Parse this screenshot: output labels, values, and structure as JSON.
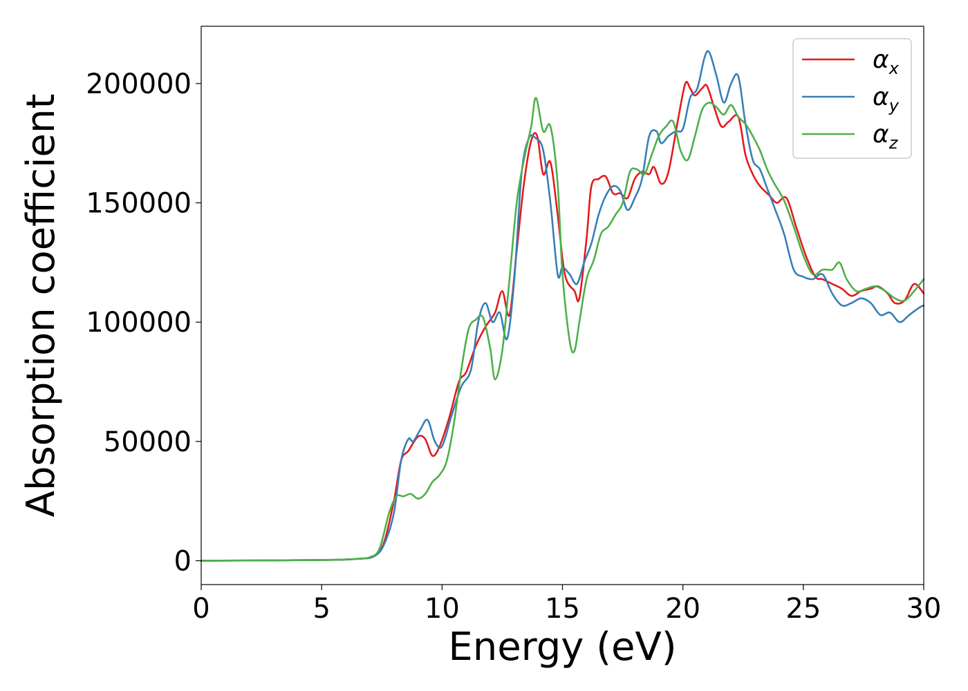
{
  "chart_data": {
    "type": "line",
    "xlabel": "Energy (eV)",
    "ylabel": "Absorption coefficient",
    "xlim": [
      0,
      30
    ],
    "ylim": [
      -10000,
      224000
    ],
    "xticks": [
      0,
      5,
      10,
      15,
      20,
      25,
      30
    ],
    "yticks": [
      0,
      50000,
      100000,
      150000,
      200000
    ],
    "grid": false,
    "legend_position": "top-right",
    "series": [
      {
        "name": "α",
        "subscript": "x",
        "color": "#e41a1c",
        "x": [
          0,
          5,
          6.5,
          7.2,
          7.6,
          8.0,
          8.3,
          8.6,
          9.0,
          9.3,
          9.6,
          9.9,
          10.3,
          10.7,
          11.0,
          11.4,
          11.8,
          12.2,
          12.5,
          12.8,
          13.1,
          13.4,
          13.7,
          13.95,
          14.2,
          14.5,
          14.8,
          15.1,
          15.5,
          15.7,
          16.0,
          16.2,
          16.5,
          16.8,
          17.1,
          17.4,
          17.7,
          18.0,
          18.3,
          18.6,
          18.8,
          19.1,
          19.4,
          19.8,
          20.1,
          20.3,
          20.5,
          20.8,
          21.0,
          21.3,
          21.6,
          21.9,
          22.3,
          22.6,
          22.9,
          23.2,
          23.6,
          23.9,
          24.3,
          24.7,
          25.1,
          25.5,
          25.8,
          26.2,
          26.6,
          27.0,
          27.4,
          27.8,
          28.1,
          28.5,
          28.8,
          29.2,
          29.6,
          30.0
        ],
        "y": [
          0,
          300,
          800,
          2000,
          8000,
          25000,
          42000,
          46000,
          52000,
          51000,
          44000,
          48000,
          60000,
          75000,
          79000,
          90000,
          98000,
          104000,
          113000,
          103000,
          130000,
          158000,
          176000,
          178000,
          162000,
          167000,
          145000,
          120000,
          113000,
          110000,
          135000,
          157000,
          160000,
          161000,
          154000,
          154000,
          152000,
          160000,
          163000,
          162000,
          165000,
          158000,
          163000,
          185000,
          200000,
          198000,
          195000,
          198000,
          199000,
          190000,
          182000,
          184000,
          186000,
          170000,
          162000,
          157000,
          153000,
          150000,
          152000,
          140000,
          128000,
          119000,
          118000,
          116000,
          114000,
          111000,
          113000,
          114000,
          115000,
          112000,
          108000,
          109000,
          116000,
          112000
        ]
      },
      {
        "name": "α",
        "subscript": "y",
        "color": "#377eb8",
        "x": [
          0,
          5,
          6.5,
          7.2,
          7.6,
          8.0,
          8.3,
          8.6,
          8.8,
          9.1,
          9.4,
          9.7,
          10.0,
          10.4,
          10.8,
          11.2,
          11.5,
          11.8,
          12.1,
          12.4,
          12.7,
          13.0,
          13.3,
          13.6,
          13.9,
          14.2,
          14.5,
          14.8,
          15.0,
          15.3,
          15.6,
          15.9,
          16.2,
          16.5,
          16.8,
          17.1,
          17.4,
          17.7,
          18.0,
          18.3,
          18.6,
          18.9,
          19.1,
          19.4,
          19.7,
          20.0,
          20.3,
          20.6,
          20.9,
          21.1,
          21.4,
          21.7,
          22.0,
          22.3,
          22.6,
          22.9,
          23.2,
          23.5,
          23.8,
          24.2,
          24.6,
          25.0,
          25.4,
          25.8,
          26.2,
          26.6,
          27.0,
          27.4,
          27.8,
          28.2,
          28.6,
          29.0,
          29.4,
          29.8,
          30.0
        ],
        "y": [
          0,
          300,
          800,
          2000,
          7000,
          20000,
          42000,
          51000,
          50000,
          55000,
          59000,
          50000,
          48000,
          61000,
          73000,
          80000,
          100000,
          108000,
          100000,
          104000,
          93000,
          118000,
          162000,
          177000,
          177000,
          172000,
          150000,
          120000,
          123000,
          120000,
          116000,
          125000,
          133000,
          145000,
          153000,
          157000,
          155000,
          147000,
          152000,
          160000,
          178000,
          180000,
          175000,
          178000,
          180000,
          181000,
          194000,
          198000,
          211000,
          213000,
          203000,
          192000,
          200000,
          203000,
          183000,
          168000,
          164000,
          156000,
          148000,
          137000,
          122000,
          119000,
          118000,
          120000,
          112000,
          107000,
          108000,
          110000,
          108000,
          103000,
          104000,
          100000,
          103000,
          106000,
          107000
        ]
      },
      {
        "name": "α",
        "subscript": "z",
        "color": "#4daf4a",
        "x": [
          0,
          5,
          6.5,
          7.0,
          7.4,
          7.8,
          8.1,
          8.4,
          8.7,
          9.0,
          9.3,
          9.6,
          9.9,
          10.2,
          10.5,
          10.8,
          11.1,
          11.4,
          11.7,
          12.0,
          12.2,
          12.5,
          12.8,
          13.1,
          13.4,
          13.7,
          13.9,
          14.2,
          14.5,
          14.8,
          15.0,
          15.3,
          15.5,
          15.7,
          16.0,
          16.3,
          16.6,
          16.9,
          17.2,
          17.5,
          17.8,
          18.1,
          18.4,
          18.7,
          19.0,
          19.3,
          19.6,
          19.9,
          20.2,
          20.5,
          20.8,
          21.1,
          21.4,
          21.7,
          22.0,
          22.3,
          22.6,
          22.9,
          23.2,
          23.5,
          23.8,
          24.2,
          24.6,
          25.0,
          25.4,
          25.8,
          26.2,
          26.5,
          26.8,
          27.2,
          27.6,
          28.0,
          28.4,
          28.8,
          29.2,
          29.6,
          30.0
        ],
        "y": [
          0,
          300,
          800,
          1500,
          5000,
          20000,
          27000,
          27000,
          28000,
          26000,
          28000,
          33000,
          36000,
          42000,
          58000,
          80000,
          97000,
          101000,
          102000,
          89000,
          76000,
          88000,
          118000,
          150000,
          168000,
          182000,
          194000,
          180000,
          182000,
          158000,
          120000,
          92000,
          88000,
          100000,
          118000,
          126000,
          137000,
          140000,
          145000,
          150000,
          163000,
          164000,
          162000,
          170000,
          178000,
          182000,
          184000,
          172000,
          168000,
          178000,
          189000,
          192000,
          190000,
          187000,
          191000,
          186000,
          183000,
          178000,
          172000,
          164000,
          158000,
          151000,
          140000,
          128000,
          120000,
          122000,
          122000,
          125000,
          118000,
          113000,
          114000,
          115000,
          113000,
          110000,
          109000,
          113000,
          118000
        ]
      }
    ]
  }
}
